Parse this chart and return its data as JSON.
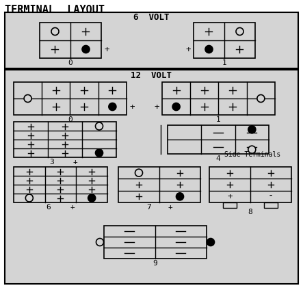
{
  "title": "TERMINAL  LAYOUT",
  "bg_color": "#d4d4d4",
  "outer_bg": "#ffffff",
  "line_color": "#000000",
  "section_6v_label": "6  VOLT",
  "section_12v_label": "12  VOLT",
  "side_terminals_label": "Side Terminals"
}
